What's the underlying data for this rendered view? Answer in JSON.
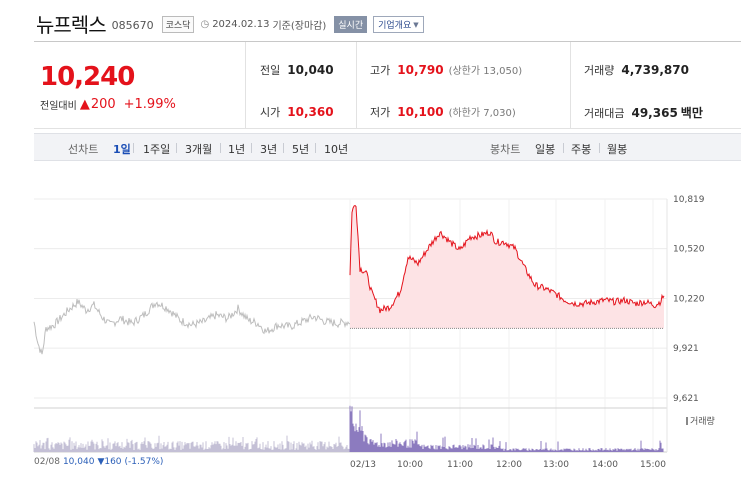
{
  "header": {
    "name": "뉴프렉스",
    "code": "085670",
    "market": "코스닥",
    "date": "2024.02.13",
    "basis": "기준(장마감)",
    "realtime_label": "실시간",
    "company_label": "기업개요"
  },
  "summary": {
    "price": "10,240",
    "diff_label": "전일대비",
    "diff_value": "200",
    "diff_pct": "+1.99%",
    "prev_close": {
      "label": "전일",
      "value": "10,040"
    },
    "open": {
      "label": "시가",
      "value": "10,360"
    },
    "high": {
      "label": "고가",
      "value": "10,790",
      "limit": "(상한가 13,050)"
    },
    "low": {
      "label": "저가",
      "value": "10,100",
      "limit": "(하한가 7,030)"
    },
    "volume": {
      "label": "거래량",
      "value": "4,739,870"
    },
    "amount": {
      "label": "거래대금",
      "value": "49,365",
      "unit": "백만"
    }
  },
  "toolbar": {
    "line_label": "선차트",
    "line_periods": [
      "1일",
      "1주일",
      "3개월",
      "1년",
      "3년",
      "5년",
      "10년"
    ],
    "active_period": "1일",
    "candle_label": "봉차트",
    "candle_periods": [
      "일봉",
      "주봉",
      "월봉"
    ]
  },
  "chart_data": {
    "type": "line",
    "ylim": [
      9621,
      10819
    ],
    "y_ticks": [
      "10,819",
      "10,520",
      "10,220",
      "9,921",
      "9,621"
    ],
    "x_labels": [
      "02/08",
      "02/13",
      "10:00",
      "11:00",
      "12:00",
      "13:00",
      "14:00",
      "15:00"
    ],
    "prev_close": 10040,
    "volume_label": "거래량",
    "colors": {
      "today": "#e4121b",
      "today_fill": "#fde3e5",
      "previous": "#bdbdbd",
      "volume": "#8c7bbf"
    }
  },
  "footer": {
    "date": "02/08",
    "price": "10,040",
    "change": "▼160",
    "change_pct": "(-1.57%)"
  }
}
